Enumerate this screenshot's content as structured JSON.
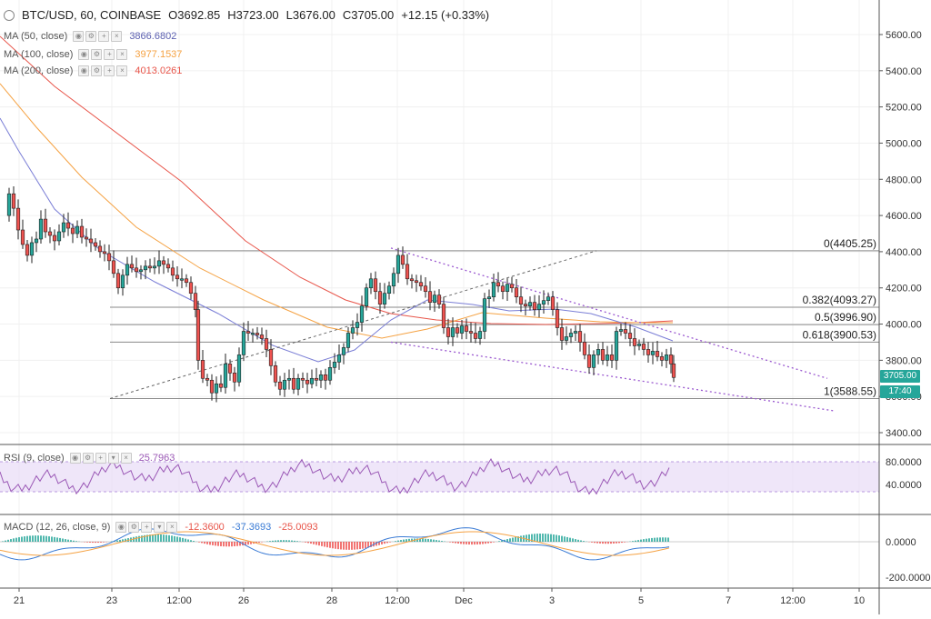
{
  "header": {
    "symbol": "BTC/USD, 60, COINBASE",
    "open": "O3692.85",
    "high": "H3723.00",
    "low": "L3676.00",
    "close": "C3705.00",
    "change": "+12.15 (+0.33%)"
  },
  "indicators": {
    "ma50": {
      "label": "MA (50, close)",
      "value": "3866.6802",
      "color": "#5b5fb0"
    },
    "ma100": {
      "label": "MA (100, close)",
      "value": "3977.1537",
      "color": "#f5a243"
    },
    "ma200": {
      "label": "MA (200, close)",
      "value": "4013.0261",
      "color": "#e8554a"
    },
    "rsi": {
      "label": "RSI (9, close)",
      "value": "25.7963",
      "color": "#9b59b6"
    },
    "macd": {
      "label": "MACD (12, 26, close, 9)",
      "v1": "-12.3600",
      "v2": "-37.3693",
      "v3": "-25.0093"
    }
  },
  "price_axis": {
    "ticks": [
      "5600.00",
      "5400.00",
      "5200.00",
      "5000.00",
      "4800.00",
      "4600.00",
      "4400.00",
      "4200.00",
      "4000.00",
      "3800.00",
      "3600.00",
      "3400.00"
    ]
  },
  "rsi_axis": {
    "ticks": [
      "80.0000",
      "40.0000"
    ]
  },
  "macd_axis": {
    "ticks": [
      "0.0000",
      "-200.0000"
    ]
  },
  "time_axis": {
    "ticks": [
      "21",
      "23",
      "12:00",
      "26",
      "28",
      "12:00",
      "Dec",
      "3",
      "5",
      "7",
      "12:00",
      "10"
    ]
  },
  "price_badge": {
    "value": "3705.00",
    "color": "#26a69a"
  },
  "timer_badge": {
    "value": "17:40",
    "color": "#26a69a"
  },
  "fib_levels": [
    {
      "label": "0(4405.25)",
      "price": 4405.25
    },
    {
      "label": "0.382(4093.27)",
      "price": 4093.27
    },
    {
      "label": "0.5(3996.90)",
      "price": 3996.9
    },
    {
      "label": "0.618(3900.53)",
      "price": 3900.53
    },
    {
      "label": "1(3588.55)",
      "price": 3588.55
    }
  ],
  "chart_data": {
    "type": "candlestick",
    "series_price": [
      [
        0,
        4600
      ],
      [
        5,
        4720
      ],
      [
        10,
        4640
      ],
      [
        15,
        4520
      ],
      [
        20,
        4440
      ],
      [
        25,
        4380
      ],
      [
        30,
        4450
      ],
      [
        35,
        4470
      ],
      [
        40,
        4580
      ],
      [
        45,
        4510
      ],
      [
        50,
        4490
      ],
      [
        55,
        4460
      ],
      [
        60,
        4510
      ],
      [
        65,
        4560
      ],
      [
        70,
        4530
      ],
      [
        75,
        4500
      ],
      [
        80,
        4540
      ],
      [
        85,
        4480
      ],
      [
        90,
        4470
      ],
      [
        95,
        4450
      ],
      [
        100,
        4430
      ],
      [
        105,
        4400
      ],
      [
        110,
        4390
      ],
      [
        115,
        4350
      ],
      [
        120,
        4280
      ],
      [
        125,
        4200
      ],
      [
        130,
        4270
      ],
      [
        135,
        4330
      ],
      [
        140,
        4310
      ],
      [
        145,
        4290
      ],
      [
        150,
        4300
      ],
      [
        155,
        4320
      ],
      [
        160,
        4310
      ],
      [
        165,
        4320
      ],
      [
        170,
        4350
      ],
      [
        175,
        4330
      ],
      [
        180,
        4310
      ],
      [
        185,
        4270
      ],
      [
        190,
        4250
      ],
      [
        195,
        4250
      ],
      [
        200,
        4230
      ],
      [
        205,
        4170
      ],
      [
        210,
        4080
      ],
      [
        213,
        3800
      ],
      [
        218,
        3700
      ],
      [
        223,
        3690
      ],
      [
        228,
        3620
      ],
      [
        233,
        3670
      ],
      [
        238,
        3650
      ],
      [
        243,
        3780
      ],
      [
        248,
        3730
      ],
      [
        253,
        3680
      ],
      [
        258,
        3830
      ],
      [
        263,
        3960
      ],
      [
        268,
        3950
      ],
      [
        273,
        3950
      ],
      [
        278,
        3940
      ],
      [
        283,
        3920
      ],
      [
        288,
        3860
      ],
      [
        293,
        3770
      ],
      [
        298,
        3680
      ],
      [
        303,
        3640
      ],
      [
        308,
        3690
      ],
      [
        313,
        3700
      ],
      [
        318,
        3640
      ],
      [
        323,
        3700
      ],
      [
        328,
        3690
      ],
      [
        333,
        3670
      ],
      [
        338,
        3700
      ],
      [
        343,
        3690
      ],
      [
        348,
        3720
      ],
      [
        353,
        3690
      ],
      [
        358,
        3760
      ],
      [
        363,
        3790
      ],
      [
        368,
        3830
      ],
      [
        373,
        3870
      ],
      [
        378,
        3950
      ],
      [
        383,
        3980
      ],
      [
        388,
        4010
      ],
      [
        393,
        4100
      ],
      [
        398,
        4200
      ],
      [
        403,
        4250
      ],
      [
        408,
        4180
      ],
      [
        413,
        4110
      ],
      [
        418,
        4170
      ],
      [
        423,
        4210
      ],
      [
        428,
        4280
      ],
      [
        433,
        4380
      ],
      [
        438,
        4330
      ],
      [
        443,
        4250
      ],
      [
        448,
        4240
      ],
      [
        453,
        4230
      ],
      [
        458,
        4210
      ],
      [
        463,
        4180
      ],
      [
        468,
        4120
      ],
      [
        473,
        4160
      ],
      [
        478,
        4110
      ],
      [
        483,
        3980
      ],
      [
        488,
        3930
      ],
      [
        493,
        3980
      ],
      [
        498,
        3950
      ],
      [
        503,
        3990
      ],
      [
        508,
        3960
      ],
      [
        513,
        3950
      ],
      [
        518,
        3920
      ],
      [
        523,
        3960
      ],
      [
        528,
        4140
      ],
      [
        533,
        4150
      ],
      [
        538,
        4230
      ],
      [
        543,
        4210
      ],
      [
        548,
        4180
      ],
      [
        553,
        4220
      ],
      [
        558,
        4200
      ],
      [
        563,
        4150
      ],
      [
        568,
        4110
      ],
      [
        573,
        4100
      ],
      [
        578,
        4120
      ],
      [
        583,
        4080
      ],
      [
        588,
        4110
      ],
      [
        593,
        4130
      ],
      [
        598,
        4150
      ],
      [
        603,
        4080
      ],
      [
        608,
        3980
      ],
      [
        613,
        3910
      ],
      [
        618,
        3930
      ],
      [
        623,
        3950
      ],
      [
        628,
        3960
      ],
      [
        633,
        3900
      ],
      [
        638,
        3830
      ],
      [
        643,
        3760
      ],
      [
        648,
        3830
      ],
      [
        653,
        3860
      ],
      [
        658,
        3800
      ],
      [
        663,
        3830
      ],
      [
        668,
        3800
      ],
      [
        673,
        3960
      ],
      [
        678,
        3970
      ],
      [
        683,
        3950
      ],
      [
        688,
        3920
      ],
      [
        693,
        3880
      ],
      [
        698,
        3890
      ],
      [
        703,
        3860
      ],
      [
        708,
        3830
      ],
      [
        713,
        3850
      ],
      [
        718,
        3820
      ],
      [
        723,
        3800
      ],
      [
        728,
        3830
      ],
      [
        733,
        3780
      ],
      [
        736,
        3705
      ]
    ]
  }
}
